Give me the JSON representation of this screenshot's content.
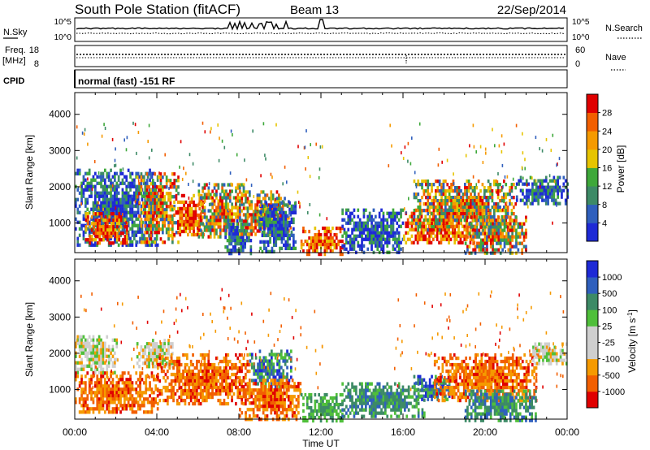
{
  "header": {
    "station": "South Pole Station (fitACF)",
    "beam": "Beam 13",
    "date": "22/Sep/2014"
  },
  "strip_labels": {
    "nsky": "N.Sky",
    "nsearch": "N.Search",
    "freq_line1": "Freq.",
    "freq_line2": "[MHz]",
    "nave": "Nave",
    "cpid": "CPID",
    "cpid_text": "normal (fast) -151 RF"
  },
  "strip_ticks": {
    "noise_top": "10^5",
    "noise_bottom": "10^0",
    "freq_top": "18",
    "freq_bottom": "8",
    "nave_top": "60",
    "nave_bottom": "0"
  },
  "colors": {
    "power_scale": [
      "#1e2ad6",
      "#2f5fbd",
      "#3d8a66",
      "#3ea83a",
      "#e6c400",
      "#f59a00",
      "#f25f00",
      "#e00000"
    ],
    "velocity_scale": [
      "#e00000",
      "#f25f00",
      "#f59a00",
      "#cfcfcf",
      "#cfcfcf",
      "#4fbf3a",
      "#3d8a66",
      "#2f5fbd",
      "#1e2ad6"
    ]
  },
  "chart_data": [
    {
      "type": "heatmap",
      "title": "",
      "xlabel": "Time UT",
      "ylabel": "Slant Range [km]",
      "x_ticks": [
        "00:00",
        "04:00",
        "08:00",
        "12:00",
        "16:00",
        "20:00",
        "00:00"
      ],
      "xlim_hours": [
        0,
        24
      ],
      "y_ticks": [
        1000,
        2000,
        3000,
        4000
      ],
      "ylim": [
        180,
        4600
      ],
      "colorbar": {
        "label": "Power [dB]",
        "ticks": [
          4,
          8,
          12,
          16,
          20,
          24,
          28
        ],
        "range": [
          0,
          32
        ]
      },
      "regions": [
        {
          "t0": 0.0,
          "t1": 4.0,
          "r0": 350,
          "r1": 2500,
          "level": "low"
        },
        {
          "t0": 0.5,
          "t1": 2.5,
          "r0": 450,
          "r1": 1300,
          "level": "high"
        },
        {
          "t0": 3.0,
          "t1": 5.0,
          "r0": 500,
          "r1": 2400,
          "level": "mid"
        },
        {
          "t0": 4.8,
          "t1": 6.3,
          "r0": 650,
          "r1": 1800,
          "level": "high"
        },
        {
          "t0": 6.0,
          "t1": 8.2,
          "r0": 600,
          "r1": 2100,
          "level": "mid"
        },
        {
          "t0": 7.3,
          "t1": 8.6,
          "r0": 180,
          "r1": 1100,
          "level": "low"
        },
        {
          "t0": 8.0,
          "t1": 10.5,
          "r0": 700,
          "r1": 1900,
          "level": "mid"
        },
        {
          "t0": 9.0,
          "t1": 10.8,
          "r0": 180,
          "r1": 1600,
          "level": "low"
        },
        {
          "t0": 11.0,
          "t1": 13.1,
          "r0": 180,
          "r1": 900,
          "level": "high"
        },
        {
          "t0": 13.0,
          "t1": 16.0,
          "r0": 180,
          "r1": 1400,
          "level": "low"
        },
        {
          "t0": 16.0,
          "t1": 19.5,
          "r0": 500,
          "r1": 1400,
          "level": "high"
        },
        {
          "t0": 16.5,
          "t1": 21.5,
          "r0": 800,
          "r1": 2200,
          "level": "mid"
        },
        {
          "t0": 19.0,
          "t1": 22.0,
          "r0": 180,
          "r1": 1200,
          "level": "mid"
        },
        {
          "t0": 21.5,
          "t1": 24.0,
          "r0": 1500,
          "r1": 2300,
          "level": "low"
        }
      ]
    },
    {
      "type": "heatmap",
      "title": "",
      "xlabel": "Time UT",
      "ylabel": "Slant Range [km]",
      "x_ticks": [
        "00:00",
        "04:00",
        "08:00",
        "12:00",
        "16:00",
        "20:00",
        "00:00"
      ],
      "xlim_hours": [
        0,
        24
      ],
      "y_ticks": [
        1000,
        2000,
        3000,
        4000
      ],
      "ylim": [
        180,
        4600
      ],
      "colorbar": {
        "label": "Velocity [m s^-1]",
        "ticks": [
          -1000,
          -500,
          -100,
          -25,
          25,
          100,
          500,
          1000
        ],
        "range": [
          -1250,
          1250
        ]
      },
      "regions": [
        {
          "t0": 0.0,
          "t1": 2.0,
          "r0": 1500,
          "r1": 2500,
          "level": "grey"
        },
        {
          "t0": 0.0,
          "t1": 4.0,
          "r0": 350,
          "r1": 1500,
          "level": "negative"
        },
        {
          "t0": 3.0,
          "t1": 4.8,
          "r0": 1600,
          "r1": 2400,
          "level": "grey"
        },
        {
          "t0": 4.0,
          "t1": 8.5,
          "r0": 600,
          "r1": 2000,
          "level": "negative"
        },
        {
          "t0": 8.5,
          "t1": 10.5,
          "r0": 1100,
          "r1": 2100,
          "level": "positive_strong"
        },
        {
          "t0": 8.0,
          "t1": 11.0,
          "r0": 180,
          "r1": 1300,
          "level": "negative"
        },
        {
          "t0": 11.0,
          "t1": 13.0,
          "r0": 180,
          "r1": 900,
          "level": "positive_weak"
        },
        {
          "t0": 13.0,
          "t1": 17.0,
          "r0": 300,
          "r1": 1200,
          "level": "positive"
        },
        {
          "t0": 16.5,
          "t1": 18.3,
          "r0": 700,
          "r1": 1400,
          "level": "positive_strong"
        },
        {
          "t0": 17.5,
          "t1": 22.5,
          "r0": 700,
          "r1": 2000,
          "level": "negative"
        },
        {
          "t0": 19.0,
          "t1": 22.5,
          "r0": 180,
          "r1": 1000,
          "level": "positive"
        },
        {
          "t0": 22.3,
          "t1": 24.0,
          "r0": 1700,
          "r1": 2300,
          "level": "grey"
        }
      ]
    }
  ]
}
